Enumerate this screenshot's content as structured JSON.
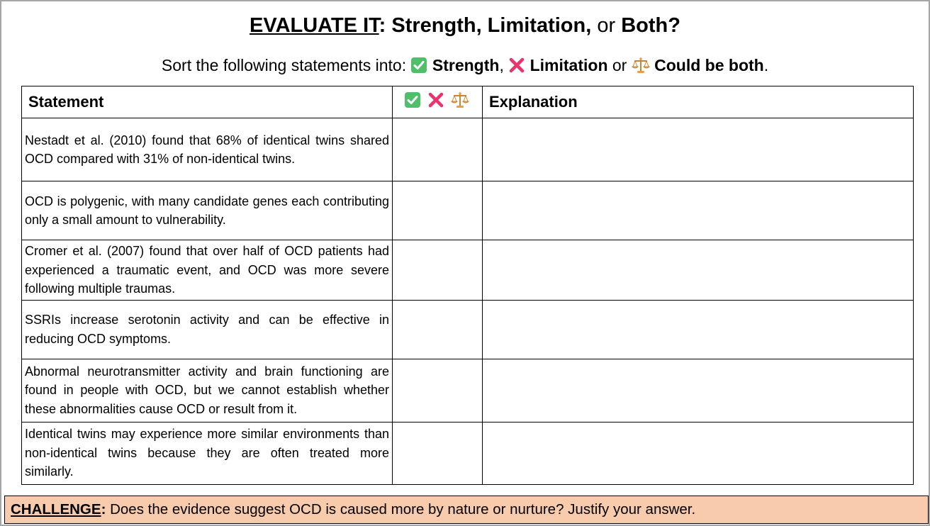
{
  "title": {
    "part1": "EVALUATE IT",
    "part2": ": Strength, Limitation,",
    "part3": " or ",
    "part4": "Both?"
  },
  "subtitle": {
    "lead": "Sort the following statements into: ",
    "strength": "Strength",
    "comma": ", ",
    "limitation": "Limitation",
    "or": " or ",
    "both": "Could be both",
    "period": "."
  },
  "icons": {
    "strength": "check-mark-icon",
    "limitation": "cross-mark-icon",
    "both": "balance-scale-icon",
    "colors": {
      "check_bg": "#4fbf6a",
      "cross": "#e8336d",
      "scale": "#e0a24a"
    }
  },
  "table": {
    "headers": {
      "statement": "Statement",
      "explanation": "Explanation"
    },
    "rows": [
      {
        "statement": "Nestadt et al. (2010) found that 68% of identical twins shared OCD compared with 31% of non-identical twins."
      },
      {
        "statement": "OCD is polygenic, with many candidate genes each contributing only a small amount to vulnerability."
      },
      {
        "statement": "Cromer et al. (2007) found that over half of OCD patients had experienced a traumatic event, and OCD was more severe following multiple traumas."
      },
      {
        "statement": "SSRIs increase serotonin activity and can be effective in reducing OCD symptoms."
      },
      {
        "statement": "Abnormal neurotransmitter activity and brain functioning are found in people with OCD, but we cannot establish whether these abnormalities cause OCD or result from it."
      },
      {
        "statement": "Identical twins may experience more similar environments than non-identical twins because they are often treated more similarly."
      }
    ]
  },
  "challenge": {
    "label": "CHALLENGE",
    "colon": ":",
    "text": " Does the evidence suggest OCD is caused more by nature or nurture? Justify your answer.",
    "background": "#f8cbad"
  }
}
